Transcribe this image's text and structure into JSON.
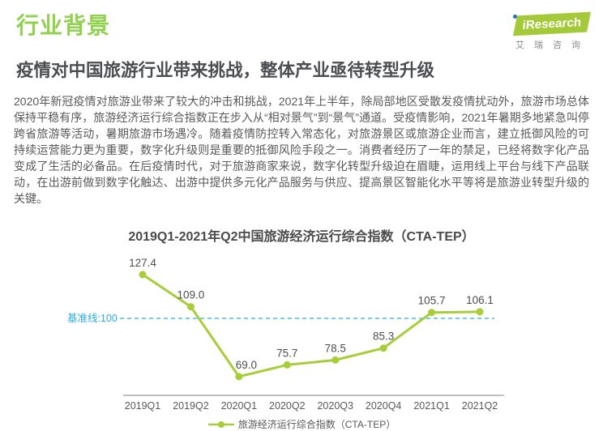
{
  "page": {
    "section_label": "行业背景",
    "headline": "疫情对中国旅游行业带来挑战，整体产业亟待转型升级",
    "body": "2020年新冠疫情对旅游业带来了较大的冲击和挑战，2021年上半年，除局部地区受散发疫情扰动外，旅游市场总体保持平稳有序，旅游经济运行综合指数正在步入从“相对景气”到“景气”通道。受疫情影响，2021年暑期多地紧急叫停跨省旅游等活动，暑期旅游市场遇冷。随着疫情防控转入常态化，对旅游景区或旅游企业而言，建立抵御风险的可持续运营能力更为重要，数字化升级则是重要的抵御风险手段之一。消费者经历了一年的禁足，已经将数字化产品变成了生活的必备品。在后疫情时代，对于旅游商家来说，数字化转型升级迫在眉睫，运用线上平台与线下产品联动，在出游前做到数字化触达、出游中提供多元化产品服务与供应、提高景区智能化水平等将是旅游业转型升级的关键。"
  },
  "logo": {
    "brand": "iResearch",
    "subtext": "艾瑞咨询",
    "green": "#a4ca39",
    "dot_blue": "#2470b5"
  },
  "colors": {
    "title_green": "#92d04f",
    "line_green": "#a7cd39",
    "baseline_blue": "#29abe2",
    "text_gray": "#58595b",
    "label_gray": "#4d4d4d",
    "axis_gray": "#808080"
  },
  "chart_data": {
    "type": "line",
    "title": "2019Q1-2021年Q2中国旅游经济运行综合指数（CTA-TEP）",
    "categories": [
      "2019Q1",
      "2019Q2",
      "2020Q1",
      "2020Q2",
      "2020Q3",
      "2020Q4",
      "2021Q1",
      "2021Q2"
    ],
    "series": [
      {
        "name": "旅游经济运行综合指数（CTA-TEP）",
        "values": [
          127.4,
          109.0,
          69.0,
          75.7,
          78.5,
          85.3,
          105.7,
          106.1
        ]
      }
    ],
    "baseline": {
      "label": "基准线:100",
      "value": 100,
      "color": "#29abe2"
    },
    "line_color": "#a7cd39",
    "marker": "circle",
    "data_labels": true,
    "label_color": "#4d4d4d",
    "xlabel": "",
    "ylabel": "",
    "ylim": [
      60,
      140
    ],
    "grid": false,
    "legend_position": "bottom"
  }
}
